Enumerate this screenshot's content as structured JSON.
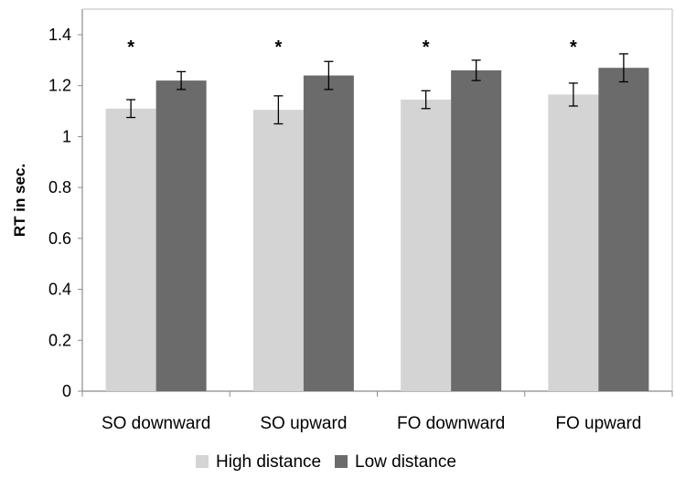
{
  "chart_data": {
    "type": "bar",
    "title": "",
    "xlabel": "",
    "ylabel": "RT in sec.",
    "ylim": [
      0,
      1.4
    ],
    "yticks": [
      0,
      0.2,
      0.4,
      0.6,
      0.8,
      1,
      1.2,
      1.4
    ],
    "ytick_labels": [
      "0",
      "0.2",
      "0.4",
      "0.6",
      "0.8",
      "1",
      "1.2",
      "1.4"
    ],
    "grid": false,
    "legend_position": "bottom",
    "categories": [
      "SO downward",
      "SO upward",
      "FO downward",
      "FO upward"
    ],
    "series": [
      {
        "name": "High distance",
        "color": "#d4d4d4",
        "values": [
          1.11,
          1.105,
          1.145,
          1.165
        ],
        "errors": [
          0.035,
          0.055,
          0.035,
          0.045
        ]
      },
      {
        "name": "Low distance",
        "color": "#6b6b6b",
        "values": [
          1.22,
          1.24,
          1.26,
          1.27
        ],
        "errors": [
          0.035,
          0.055,
          0.04,
          0.055
        ]
      }
    ],
    "significance": [
      "*",
      "*",
      "*",
      "*"
    ]
  }
}
